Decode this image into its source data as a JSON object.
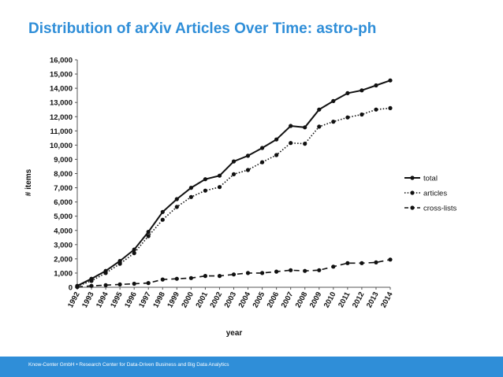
{
  "slide": {
    "title": "Distribution of arXiv Articles Over Time: astro-ph",
    "footer": "Know-Center GmbH • Research Center for Data-Driven Business and Big Data Analytics"
  },
  "colors": {
    "accent": "#2f8ed8",
    "line": "#111111"
  },
  "chart_data": {
    "type": "line",
    "title": "",
    "xlabel": "year",
    "ylabel": "# items",
    "ylim": [
      0,
      16000
    ],
    "yticks": [
      0,
      1000,
      2000,
      3000,
      4000,
      5000,
      6000,
      7000,
      8000,
      9000,
      10000,
      11000,
      12000,
      13000,
      14000,
      15000,
      16000
    ],
    "ytick_labels": [
      "0",
      "1,000",
      "2,000",
      "3,000",
      "4,000",
      "5,000",
      "6,000",
      "7,000",
      "8,000",
      "9,000",
      "10,000",
      "11,000",
      "12,000",
      "13,000",
      "14,000",
      "15,000",
      "16,000"
    ],
    "x": [
      "1992",
      "1993",
      "1994",
      "1995",
      "1996",
      "1997",
      "1998",
      "1999",
      "2000",
      "2001",
      "2002",
      "2003",
      "2004",
      "2005",
      "2006",
      "2007",
      "2008",
      "2009",
      "2010",
      "2011",
      "2012",
      "2013",
      "2014"
    ],
    "grid": false,
    "legend_position": "right",
    "series": [
      {
        "name": "total",
        "style": "solid",
        "values": [
          100,
          600,
          1150,
          1850,
          2650,
          3900,
          5300,
          6200,
          7000,
          7600,
          7850,
          8850,
          9250,
          9800,
          10400,
          11350,
          11250,
          12500,
          13100,
          13650,
          13850,
          14200,
          14550
        ]
      },
      {
        "name": "articles",
        "style": "dotted",
        "values": [
          80,
          450,
          1000,
          1650,
          2400,
          3600,
          4750,
          5650,
          6350,
          6800,
          7050,
          7950,
          8250,
          8800,
          9300,
          10150,
          10100,
          11300,
          11650,
          11950,
          12150,
          12500,
          12600
        ]
      },
      {
        "name": "cross-lists",
        "style": "dashed",
        "values": [
          20,
          100,
          150,
          200,
          250,
          300,
          550,
          600,
          650,
          800,
          800,
          900,
          1000,
          1000,
          1100,
          1200,
          1150,
          1200,
          1450,
          1700,
          1700,
          1750,
          1950
        ]
      }
    ]
  }
}
